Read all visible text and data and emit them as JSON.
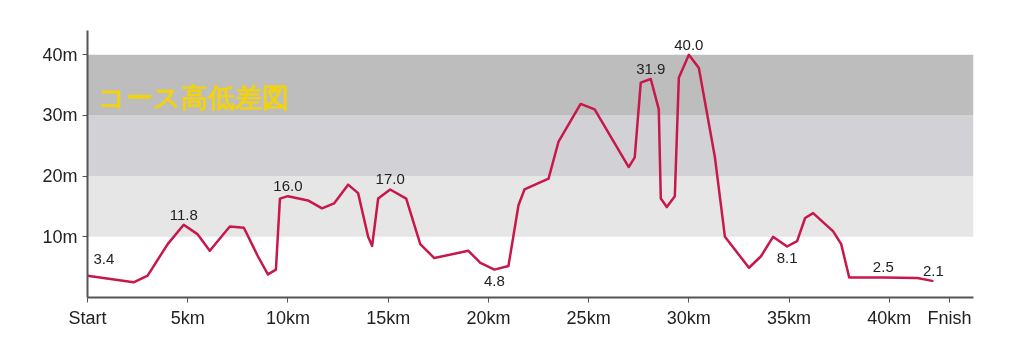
{
  "chart_data": {
    "type": "line",
    "title": "コース高低差図",
    "x": [
      0,
      2.3,
      3.0,
      4.0,
      4.8,
      5.5,
      6.1,
      7.1,
      7.8,
      8.5,
      9.0,
      9.4,
      9.6,
      10.0,
      11.0,
      11.7,
      12.3,
      13.0,
      13.5,
      14.0,
      14.2,
      14.5,
      15.1,
      15.9,
      16.6,
      17.3,
      19.0,
      19.6,
      20.3,
      21.0,
      21.5,
      21.8,
      23.0,
      23.5,
      24.6,
      25.3,
      27.0,
      27.3,
      27.6,
      28.1,
      28.5,
      28.6,
      28.9,
      29.3,
      29.5,
      30.0,
      30.5,
      31.3,
      31.8,
      33.0,
      33.6,
      34.2,
      34.9,
      35.4,
      35.8,
      36.2,
      37.2,
      37.6,
      38.0,
      39.7,
      41.4,
      42.2
    ],
    "series": [
      {
        "color": "#c8174a",
        "values": [
          3.6,
          2.5,
          3.6,
          8.8,
          12.0,
          10.4,
          7.7,
          11.7,
          11.5,
          6.8,
          3.8,
          4.6,
          16.3,
          16.7,
          16.0,
          14.7,
          15.5,
          18.6,
          17.2,
          10.0,
          8.5,
          16.3,
          17.8,
          16.3,
          8.8,
          6.5,
          7.7,
          5.7,
          4.6,
          5.2,
          15.2,
          17.8,
          19.6,
          25.7,
          31.9,
          31.0,
          21.5,
          23.1,
          35.4,
          36.0,
          31.0,
          16.3,
          14.9,
          16.7,
          36.2,
          40.0,
          37.8,
          23.1,
          10.0,
          4.9,
          6.8,
          10.0,
          8.4,
          9.3,
          13.1,
          13.9,
          10.9,
          8.8,
          3.3,
          3.3,
          3.2,
          2.7
        ]
      }
    ],
    "xlim": [
      0,
      44.2
    ],
    "ylim": [
      0,
      44
    ],
    "xticks": [
      {
        "value": 0,
        "label": "Start"
      },
      {
        "value": 5,
        "label": "5km"
      },
      {
        "value": 10,
        "label": "10km"
      },
      {
        "value": 15,
        "label": "15km"
      },
      {
        "value": 20,
        "label": "20km"
      },
      {
        "value": 25,
        "label": "25km"
      },
      {
        "value": 30,
        "label": "30km"
      },
      {
        "value": 35,
        "label": "35km"
      },
      {
        "value": 40,
        "label": "40km"
      },
      {
        "value": 43,
        "label": "Fnish"
      }
    ],
    "yticks": [
      {
        "value": 10,
        "label": "10m"
      },
      {
        "value": 20,
        "label": "20m"
      },
      {
        "value": 30,
        "label": "30m"
      },
      {
        "value": 40,
        "label": "40m"
      }
    ],
    "bands": [
      {
        "axis": "y",
        "from": 10,
        "to": 20,
        "color": "#e6e6e6"
      },
      {
        "axis": "y",
        "from": 20,
        "to": 30,
        "color": "#d2d2d6"
      },
      {
        "axis": "y",
        "from": 30,
        "to": 40,
        "color": "#bdbdbd"
      }
    ],
    "annotations": [
      {
        "text": "3.4",
        "x": 0,
        "y": 3.6
      },
      {
        "text": "11.8",
        "x": 4.8,
        "y": 12.0
      },
      {
        "text": "16.0",
        "x": 10.0,
        "y": 16.7
      },
      {
        "text": "17.0",
        "x": 15.1,
        "y": 17.8
      },
      {
        "text": "4.8",
        "x": 20.3,
        "y": 4.6
      },
      {
        "text": "31.9",
        "x": 28.1,
        "y": 36.0
      },
      {
        "text": "40.0",
        "x": 30.0,
        "y": 40.0
      },
      {
        "text": "8.1",
        "x": 34.9,
        "y": 8.4
      },
      {
        "text": "2.5",
        "x": 39.7,
        "y": 3.3
      },
      {
        "text": "2.1",
        "x": 42.2,
        "y": 2.7
      }
    ],
    "grid": false,
    "marker": "none",
    "line_style": "solid"
  }
}
